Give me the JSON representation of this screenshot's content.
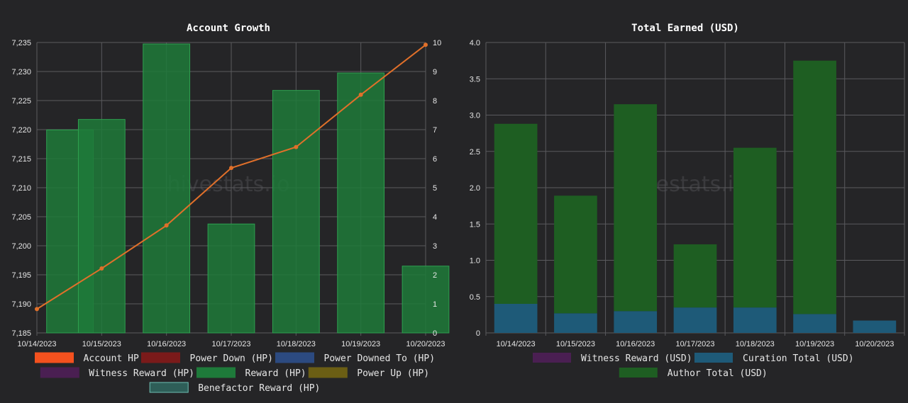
{
  "watermark": "hivestats.io",
  "chart_data": [
    {
      "type": "bar",
      "title": "Account Growth",
      "categories": [
        "10/14/2023",
        "10/15/2023",
        "10/16/2023",
        "10/17/2023",
        "10/18/2023",
        "10/19/2023",
        "10/20/2023"
      ],
      "y_left": {
        "ylim": [
          7185,
          7235
        ],
        "ticks": [
          "7,185",
          "7,190",
          "7,195",
          "7,200",
          "7,205",
          "7,210",
          "7,215",
          "7,220",
          "7,225",
          "7,230",
          "7,235"
        ]
      },
      "y_right": {
        "ylim": [
          0,
          10
        ],
        "ticks": [
          "0",
          "1",
          "2",
          "3",
          "4",
          "5",
          "6",
          "7",
          "8",
          "9",
          "10"
        ]
      },
      "series": [
        {
          "name": "Account HP",
          "kind": "line",
          "axis": "left",
          "color": "#f4511e",
          "values": [
            7189.1,
            7196.1,
            7203.5,
            7213.4,
            7217.0,
            7226.0,
            7234.6
          ]
        },
        {
          "name": "Power Down (HP)",
          "kind": "bar",
          "axis": "right",
          "color": "#7a1a1a",
          "values": [
            0,
            0,
            0,
            0,
            0,
            0,
            0
          ]
        },
        {
          "name": "Power Downed To (HP)",
          "kind": "bar",
          "axis": "right",
          "color": "#2c4a80",
          "values": [
            0,
            0,
            0,
            0,
            0,
            0,
            0
          ]
        },
        {
          "name": "Witness Reward (HP)",
          "kind": "bar",
          "axis": "right",
          "color": "#4a1f52",
          "values": [
            0,
            0,
            0,
            0,
            0,
            0,
            0
          ]
        },
        {
          "name": "Reward (HP)",
          "kind": "bar",
          "axis": "right",
          "color": "#1e7a3a",
          "values": [
            6.99,
            7.35,
            9.95,
            3.75,
            8.35,
            8.95,
            2.3
          ]
        },
        {
          "name": "Power Up (HP)",
          "kind": "bar",
          "axis": "right",
          "color": "#6b5e14",
          "values": [
            0,
            0,
            0,
            0,
            0,
            0,
            0
          ]
        },
        {
          "name": "Benefactor Reward (HP)",
          "kind": "bar",
          "axis": "right",
          "color": "#2e5e58",
          "values": [
            0,
            0,
            0,
            0,
            0,
            0,
            0
          ]
        }
      ],
      "grid": true,
      "legend_position": "bottom"
    },
    {
      "type": "bar",
      "title": "Total Earned (USD)",
      "categories": [
        "10/14/2023",
        "10/15/2023",
        "10/16/2023",
        "10/17/2023",
        "10/18/2023",
        "10/19/2023",
        "10/20/2023"
      ],
      "y_left": {
        "ylim": [
          0,
          4
        ],
        "ticks": [
          "0",
          "0.5",
          "1.0",
          "1.5",
          "2.0",
          "2.5",
          "3.0",
          "3.5",
          "4.0"
        ]
      },
      "stacked": true,
      "series": [
        {
          "name": "Witness Reward (USD)",
          "color": "#4a1f52",
          "values": [
            0,
            0,
            0,
            0,
            0,
            0,
            0
          ]
        },
        {
          "name": "Curation Total (USD)",
          "color": "#1e5a78",
          "values": [
            0.4,
            0.27,
            0.3,
            0.35,
            0.35,
            0.26,
            0.17
          ]
        },
        {
          "name": "Author Total (USD)",
          "color": "#1e5e22",
          "values": [
            2.48,
            1.62,
            2.85,
            0.87,
            2.2,
            3.49,
            0
          ]
        }
      ],
      "grid": true,
      "legend_position": "bottom"
    }
  ]
}
